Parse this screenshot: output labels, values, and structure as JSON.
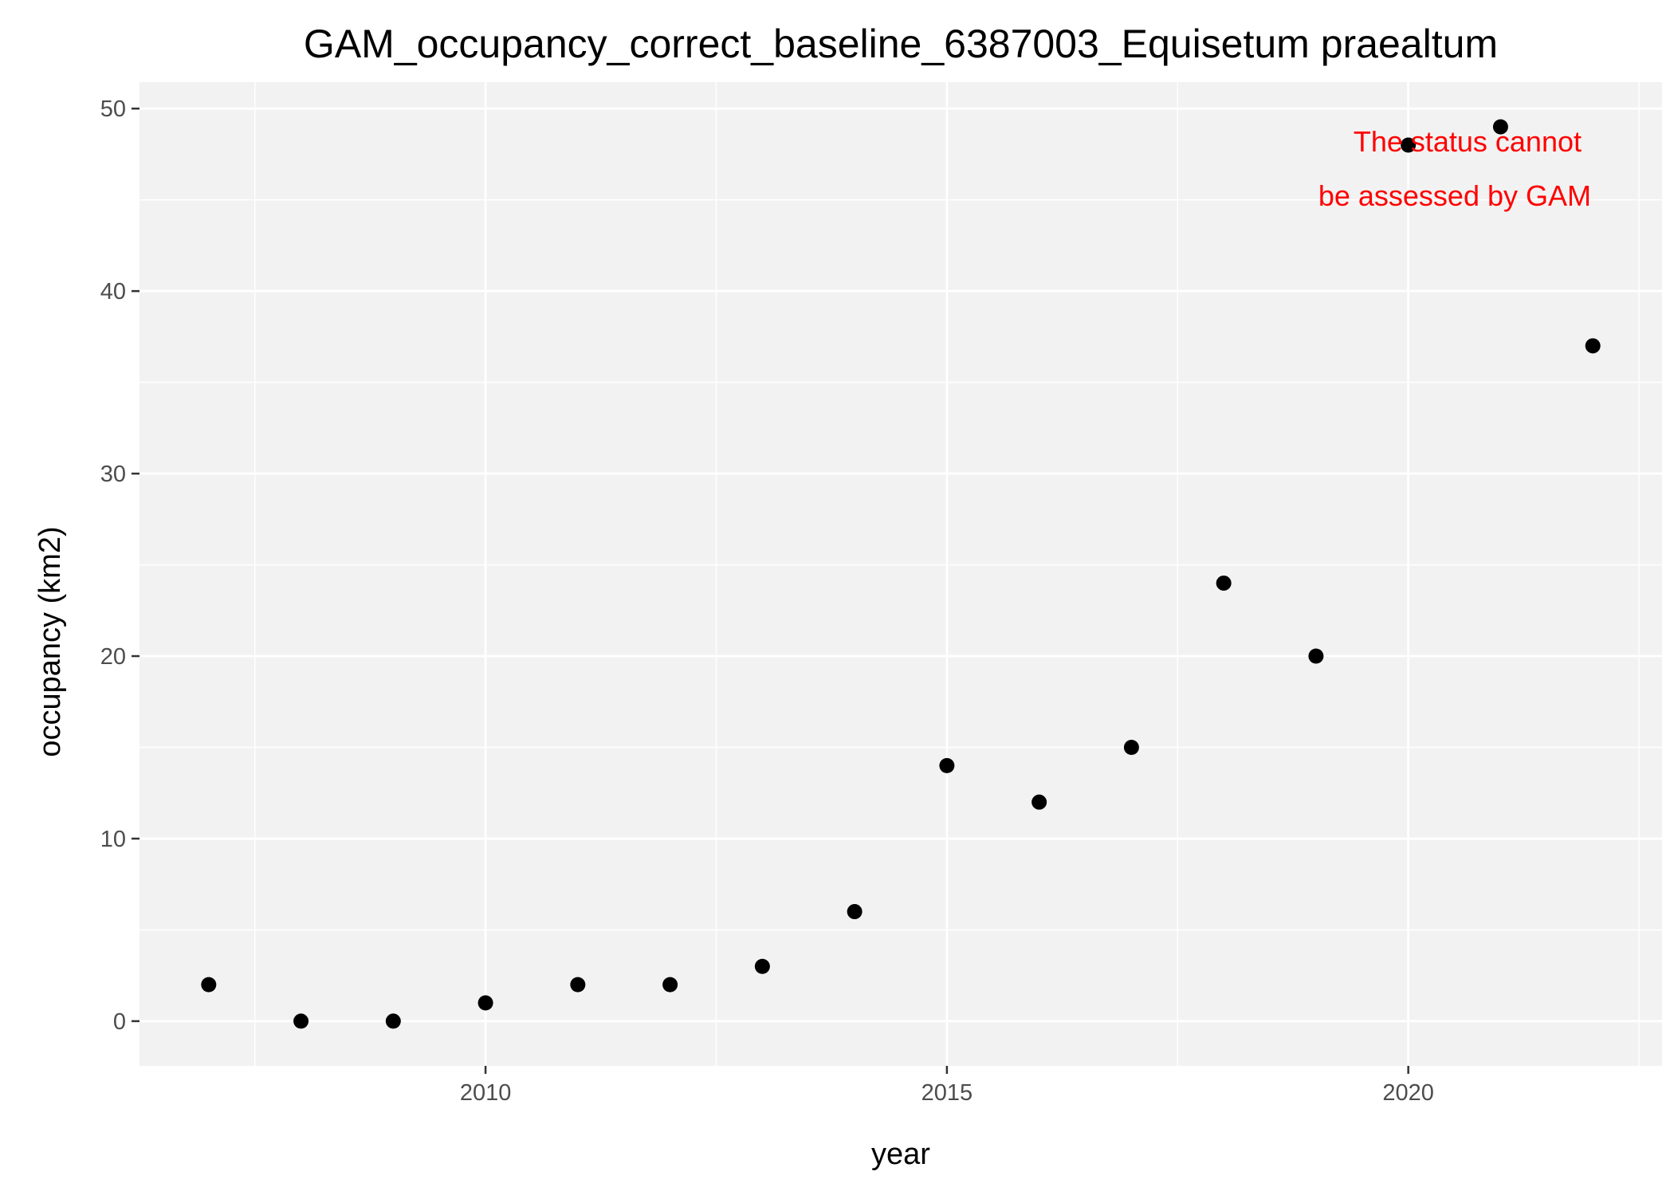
{
  "chart_data": {
    "type": "scatter",
    "title": "GAM_occupancy_correct_baseline_6387003_Equisetum praealtum",
    "xlabel": "year",
    "ylabel": "occupancy (km2)",
    "x": [
      2007,
      2008,
      2009,
      2010,
      2011,
      2012,
      2013,
      2014,
      2015,
      2016,
      2017,
      2018,
      2019,
      2020,
      2021,
      2022
    ],
    "y": [
      2,
      0,
      0,
      1,
      2,
      2,
      3,
      6,
      14,
      12,
      15,
      24,
      20,
      48,
      49,
      37
    ],
    "xlim": [
      2006.25,
      2022.75
    ],
    "ylim": [
      -2.45,
      51.45
    ],
    "x_ticks": [
      2010,
      2015,
      2020
    ],
    "x_tick_labels": [
      "2010",
      "2015",
      "2020"
    ],
    "x_minor_ticks": [
      2007.5,
      2012.5,
      2017.5,
      2022.5
    ],
    "y_ticks": [
      0,
      10,
      20,
      30,
      40,
      50
    ],
    "y_tick_labels": [
      "0",
      "10",
      "20",
      "30",
      "40",
      "50"
    ],
    "y_minor_ticks": [
      5,
      15,
      25,
      35,
      45
    ],
    "grid": true,
    "legend": "none",
    "annotation": {
      "lines": [
        "The status cannot",
        "be assessed by GAM"
      ],
      "color": "#ff0000"
    },
    "colors": {
      "panel_background": "#f2f2f2",
      "grid": "#ffffff",
      "points": "#000000",
      "tick_text": "#4d4d4d"
    }
  }
}
